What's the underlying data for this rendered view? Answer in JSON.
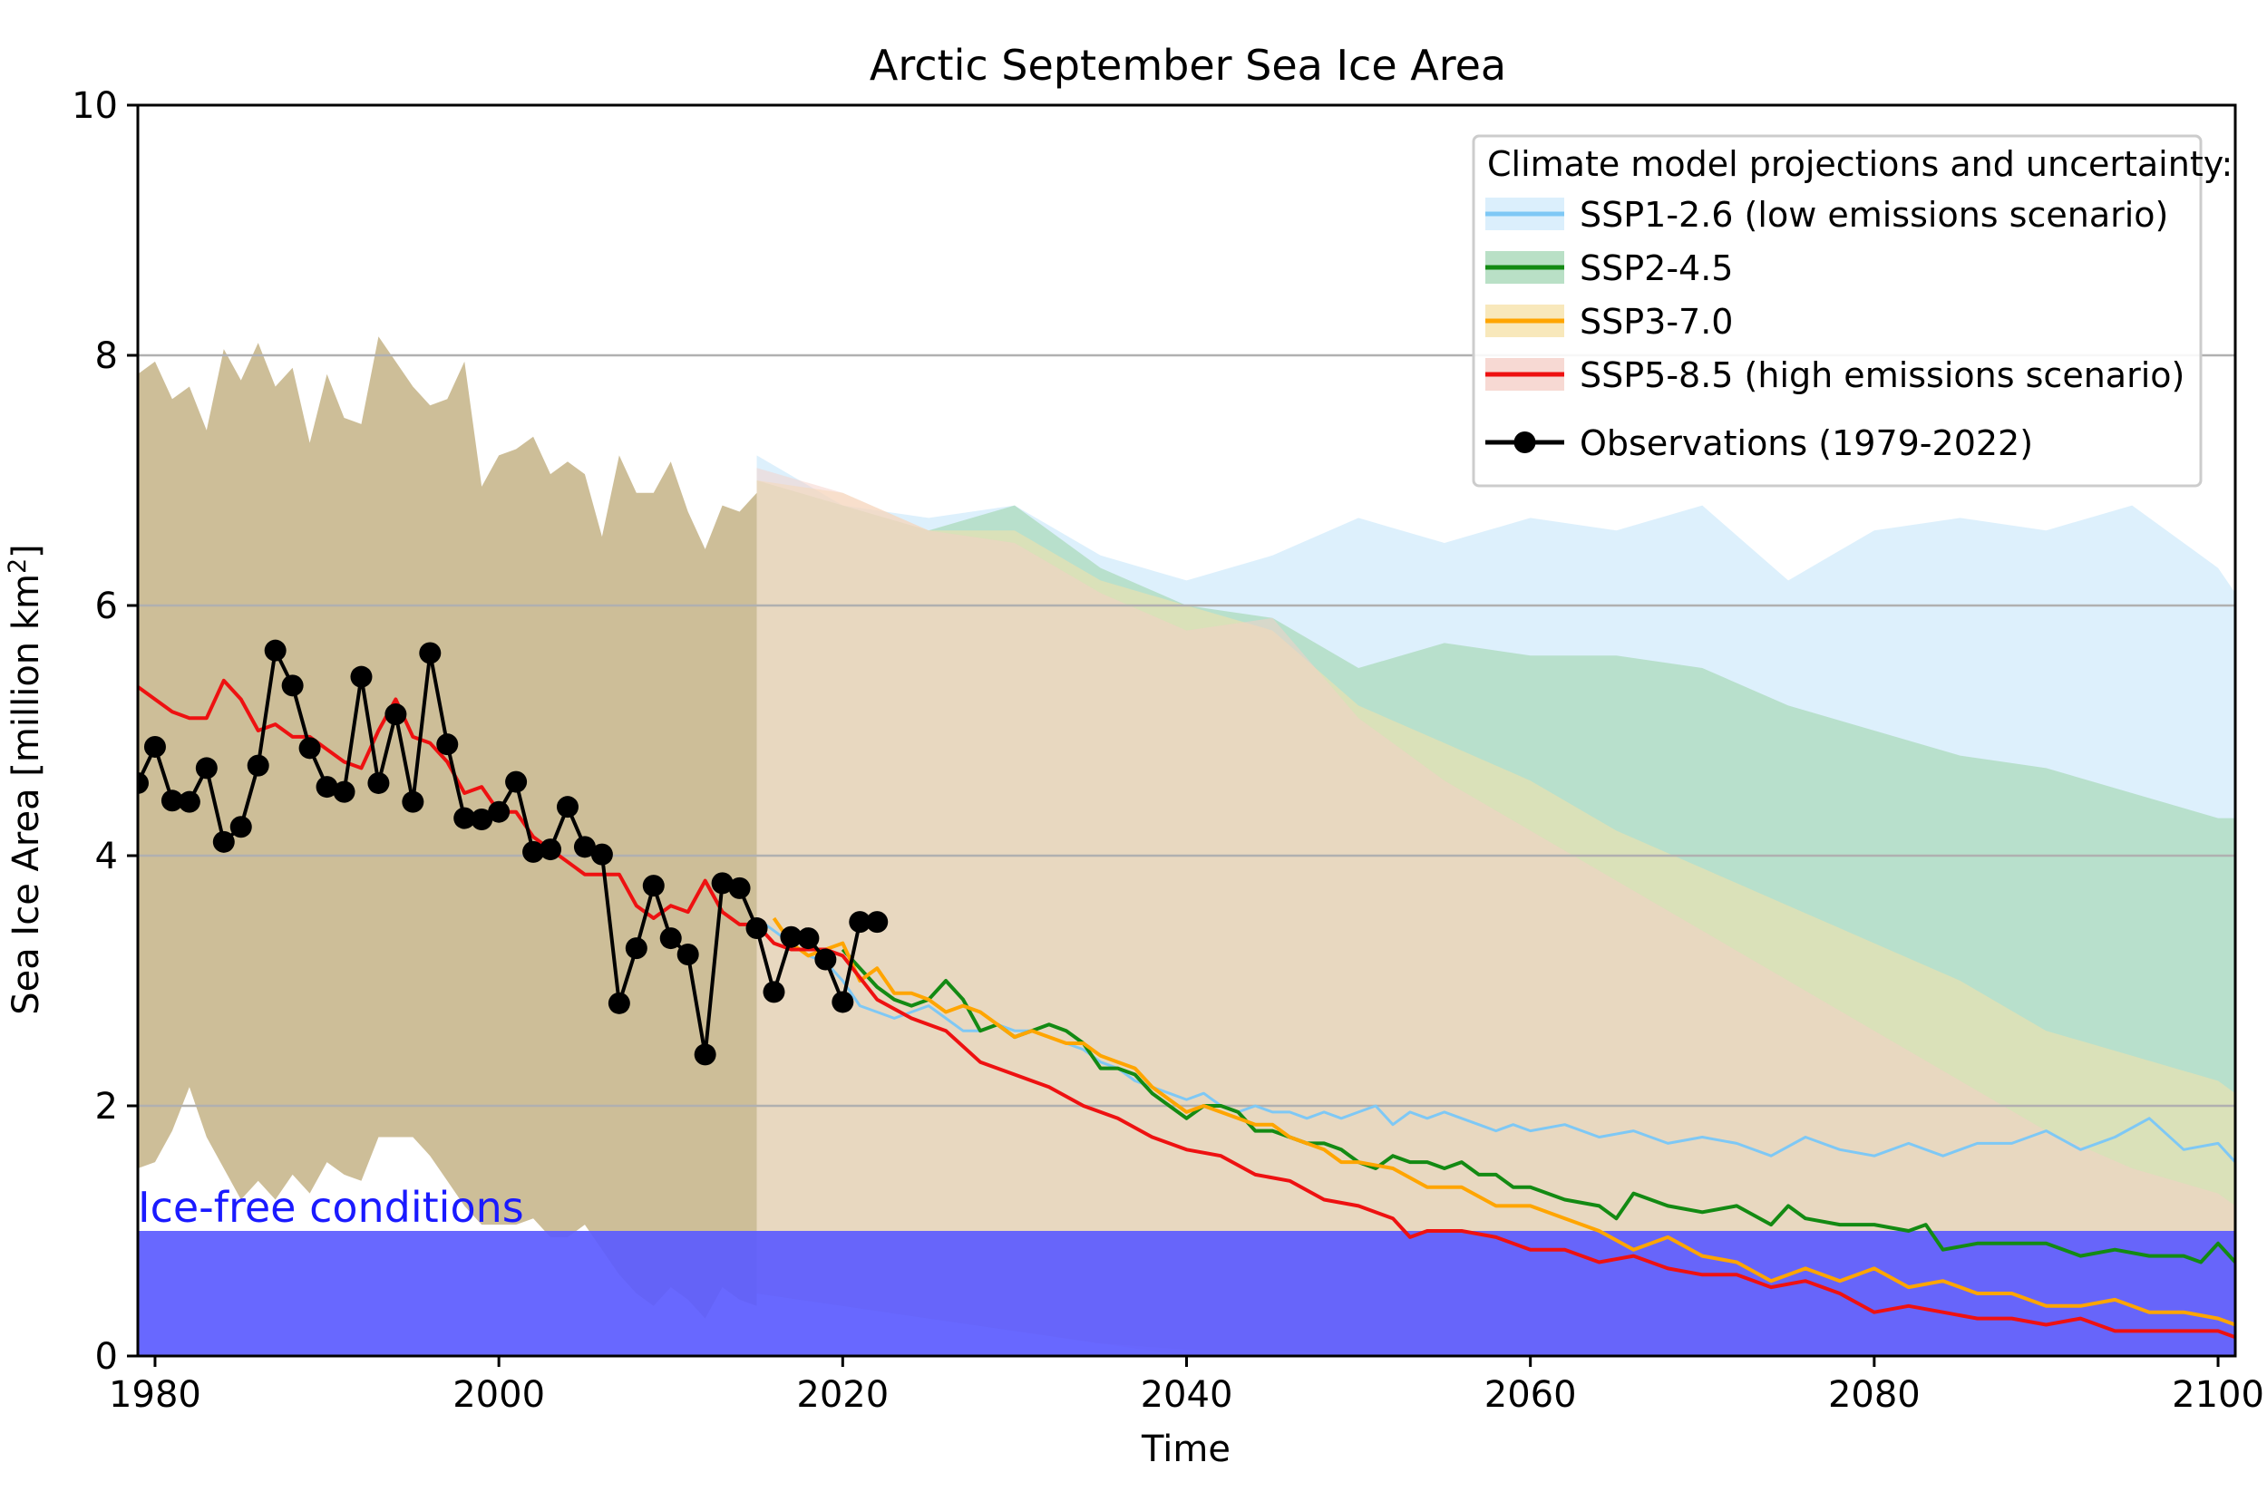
{
  "chart_data": {
    "type": "line",
    "title": "Arctic September Sea Ice Area",
    "xlabel": "Time",
    "ylabel_prefix": "Sea Ice Area [million km",
    "ylabel_sup": "2",
    "ylabel_suffix": "]",
    "xlim": [
      1979,
      2101
    ],
    "ylim": [
      0,
      10
    ],
    "xticks": [
      1980,
      2000,
      2020,
      2040,
      2060,
      2080,
      2100
    ],
    "yticks": [
      0,
      2,
      4,
      6,
      8,
      10
    ],
    "grid": "horizontal",
    "legend_placement": "top-right",
    "legend_title": "Climate model projections and uncertainty:",
    "annotation": {
      "text": "Ice-free conditions",
      "y_top": 1.0,
      "color": "#1a1aff"
    },
    "colors": {
      "ice_free": "#5b5bff",
      "band_historical": "#cdbe98",
      "ssp126": "#7ec8f5",
      "ssp126_band": "#d2ebfb",
      "ssp245": "#138a13",
      "ssp245_band": "#a8d8b8",
      "ssp370": "#ffa500",
      "ssp370_band": "#f6e2aa",
      "ssp585": "#ee1111",
      "ssp585_band": "#f5cfc8",
      "obs": "#000000"
    },
    "bands": [
      {
        "name": "historical",
        "color_key": "band_historical",
        "x": [
          1979,
          1980,
          1981,
          1982,
          1983,
          1984,
          1985,
          1986,
          1987,
          1988,
          1989,
          1990,
          1991,
          1992,
          1993,
          1994,
          1995,
          1996,
          1997,
          1998,
          1999,
          2000,
          2001,
          2002,
          2003,
          2004,
          2005,
          2006,
          2007,
          2008,
          2009,
          2010,
          2011,
          2012,
          2013,
          2014,
          2015
        ],
        "upper": [
          7.85,
          7.95,
          7.65,
          7.75,
          7.4,
          8.05,
          7.8,
          8.1,
          7.75,
          7.9,
          7.3,
          7.85,
          7.5,
          7.45,
          8.15,
          7.95,
          7.75,
          7.6,
          7.65,
          7.95,
          6.95,
          7.2,
          7.25,
          7.35,
          7.05,
          7.15,
          7.05,
          6.55,
          7.2,
          6.9,
          6.9,
          7.15,
          6.75,
          6.45,
          6.8,
          6.75,
          6.9
        ],
        "lower": [
          1.5,
          1.55,
          1.8,
          2.15,
          1.75,
          1.5,
          1.25,
          1.4,
          1.25,
          1.45,
          1.3,
          1.55,
          1.45,
          1.4,
          1.75,
          1.75,
          1.75,
          1.6,
          1.4,
          1.2,
          1.05,
          1.05,
          1.05,
          1.1,
          0.95,
          0.95,
          1.05,
          0.85,
          0.65,
          0.5,
          0.4,
          0.55,
          0.45,
          0.3,
          0.55,
          0.45,
          0.4
        ]
      },
      {
        "name": "SSP1-2.6 band",
        "color_key": "ssp126_band",
        "x": [
          2015,
          2020,
          2025,
          2030,
          2035,
          2040,
          2045,
          2050,
          2055,
          2060,
          2065,
          2070,
          2075,
          2080,
          2085,
          2090,
          2095,
          2100,
          2101
        ],
        "upper": [
          7.2,
          6.8,
          6.7,
          6.8,
          6.4,
          6.2,
          6.4,
          6.7,
          6.5,
          6.7,
          6.6,
          6.8,
          6.2,
          6.6,
          6.7,
          6.6,
          6.8,
          6.3,
          6.1
        ],
        "lower": [
          0.5,
          0.4,
          0.3,
          0.2,
          0.15,
          0.1,
          0.1,
          0.1,
          0.05,
          0.05,
          0.05,
          0.05,
          0.05,
          0.05,
          0.05,
          0.05,
          0.05,
          0.05,
          0.05
        ]
      },
      {
        "name": "SSP2-4.5 band",
        "color_key": "ssp245_band",
        "x": [
          2015,
          2020,
          2025,
          2030,
          2035,
          2040,
          2045,
          2050,
          2055,
          2060,
          2065,
          2070,
          2075,
          2080,
          2085,
          2090,
          2095,
          2100,
          2101
        ],
        "upper": [
          7.0,
          6.8,
          6.6,
          6.8,
          6.3,
          6.0,
          5.9,
          5.5,
          5.7,
          5.6,
          5.6,
          5.5,
          5.2,
          5.0,
          4.8,
          4.7,
          4.5,
          4.3,
          4.3
        ],
        "lower": [
          0.5,
          0.4,
          0.3,
          0.2,
          0.1,
          0.05,
          0.05,
          0.0,
          0.0,
          0.0,
          0.0,
          0.0,
          0.0,
          0.0,
          0.0,
          0.0,
          0.0,
          0.0,
          0.0
        ]
      },
      {
        "name": "SSP3-7.0 band",
        "color_key": "ssp370_band",
        "x": [
          2015,
          2020,
          2025,
          2030,
          2035,
          2040,
          2045,
          2050,
          2055,
          2060,
          2065,
          2070,
          2075,
          2080,
          2085,
          2090,
          2095,
          2100,
          2101
        ],
        "upper": [
          7.0,
          6.9,
          6.6,
          6.6,
          6.2,
          6.0,
          5.8,
          5.2,
          4.9,
          4.6,
          4.2,
          3.9,
          3.6,
          3.3,
          3.0,
          2.6,
          2.4,
          2.2,
          2.1
        ],
        "lower": [
          0.5,
          0.4,
          0.3,
          0.2,
          0.1,
          0.05,
          0.0,
          0.0,
          0.0,
          0.0,
          0.0,
          0.0,
          0.0,
          0.0,
          0.0,
          0.0,
          0.0,
          0.0,
          0.0
        ]
      },
      {
        "name": "SSP5-8.5 band",
        "color_key": "ssp585_band",
        "x": [
          2015,
          2020,
          2025,
          2030,
          2035,
          2040,
          2045,
          2050,
          2055,
          2060,
          2065,
          2070,
          2075,
          2080,
          2085,
          2090,
          2095,
          2100,
          2101
        ],
        "upper": [
          7.1,
          6.9,
          6.6,
          6.5,
          6.1,
          5.8,
          5.9,
          5.1,
          4.6,
          4.2,
          3.8,
          3.4,
          3.0,
          2.6,
          2.2,
          1.8,
          1.5,
          1.3,
          1.2
        ],
        "lower": [
          0.5,
          0.4,
          0.3,
          0.2,
          0.1,
          0.0,
          0.0,
          0.0,
          0.0,
          0.0,
          0.0,
          0.0,
          0.0,
          0.0,
          0.0,
          0.0,
          0.0,
          0.0,
          0.0
        ]
      }
    ],
    "series": [
      {
        "name": "SSP1-2.6 (low emissions scenario)",
        "color_key": "ssp126",
        "marker": false,
        "line_width": 3,
        "legend_swatch": "band",
        "x": [
          2015,
          2016,
          2017,
          2018,
          2019,
          2020,
          2021,
          2022,
          2023,
          2024,
          2025,
          2026,
          2027,
          2028,
          2029,
          2030,
          2031,
          2032,
          2033,
          2034,
          2035,
          2036,
          2037,
          2038,
          2039,
          2040,
          2041,
          2042,
          2043,
          2044,
          2045,
          2046,
          2047,
          2048,
          2049,
          2050,
          2051,
          2052,
          2053,
          2054,
          2055,
          2056,
          2057,
          2058,
          2059,
          2060,
          2062,
          2064,
          2066,
          2068,
          2070,
          2072,
          2074,
          2076,
          2078,
          2080,
          2082,
          2084,
          2086,
          2088,
          2090,
          2092,
          2094,
          2096,
          2098,
          2100,
          2101
        ],
        "values": [
          3.5,
          3.4,
          3.3,
          3.2,
          3.15,
          3.0,
          2.8,
          2.75,
          2.7,
          2.75,
          2.8,
          2.7,
          2.6,
          2.6,
          2.65,
          2.6,
          2.6,
          2.55,
          2.5,
          2.45,
          2.35,
          2.3,
          2.2,
          2.15,
          2.1,
          2.05,
          2.1,
          2.0,
          1.95,
          2.0,
          1.95,
          1.95,
          1.9,
          1.95,
          1.9,
          1.95,
          2.0,
          1.85,
          1.95,
          1.9,
          1.95,
          1.9,
          1.85,
          1.8,
          1.85,
          1.8,
          1.85,
          1.75,
          1.8,
          1.7,
          1.75,
          1.7,
          1.6,
          1.75,
          1.65,
          1.6,
          1.7,
          1.6,
          1.7,
          1.7,
          1.8,
          1.65,
          1.75,
          1.9,
          1.65,
          1.7,
          1.55
        ]
      },
      {
        "name": "SSP2-4.5",
        "color_key": "ssp245",
        "marker": false,
        "line_width": 4,
        "legend_swatch": "band",
        "x": [
          2020,
          2021,
          2022,
          2023,
          2024,
          2025,
          2026,
          2027,
          2028,
          2029,
          2030,
          2031,
          2032,
          2033,
          2034,
          2035,
          2036,
          2037,
          2038,
          2039,
          2040,
          2041,
          2042,
          2043,
          2044,
          2045,
          2046,
          2047,
          2048,
          2049,
          2050,
          2051,
          2052,
          2053,
          2054,
          2055,
          2056,
          2057,
          2058,
          2059,
          2060,
          2062,
          2064,
          2065,
          2066,
          2068,
          2070,
          2072,
          2074,
          2075,
          2076,
          2078,
          2080,
          2082,
          2083,
          2084,
          2086,
          2088,
          2090,
          2092,
          2094,
          2096,
          2098,
          2099,
          2100,
          2101
        ],
        "values": [
          3.25,
          3.1,
          2.95,
          2.85,
          2.8,
          2.85,
          3.0,
          2.85,
          2.6,
          2.65,
          2.55,
          2.6,
          2.65,
          2.6,
          2.5,
          2.3,
          2.3,
          2.25,
          2.1,
          2.0,
          1.9,
          2.0,
          2.0,
          1.95,
          1.8,
          1.8,
          1.75,
          1.7,
          1.7,
          1.65,
          1.55,
          1.5,
          1.6,
          1.55,
          1.55,
          1.5,
          1.55,
          1.45,
          1.45,
          1.35,
          1.35,
          1.25,
          1.2,
          1.1,
          1.3,
          1.2,
          1.15,
          1.2,
          1.05,
          1.2,
          1.1,
          1.05,
          1.05,
          1.0,
          1.05,
          0.85,
          0.9,
          0.9,
          0.9,
          0.8,
          0.85,
          0.8,
          0.8,
          0.75,
          0.9,
          0.75
        ]
      },
      {
        "name": "SSP3-7.0",
        "color_key": "ssp370",
        "marker": false,
        "line_width": 4,
        "legend_swatch": "band",
        "x": [
          2016,
          2017,
          2018,
          2019,
          2020,
          2021,
          2022,
          2023,
          2024,
          2025,
          2026,
          2027,
          2028,
          2029,
          2030,
          2031,
          2032,
          2033,
          2034,
          2035,
          2036,
          2037,
          2038,
          2039,
          2040,
          2041,
          2042,
          2043,
          2044,
          2045,
          2046,
          2047,
          2048,
          2049,
          2050,
          2052,
          2054,
          2056,
          2058,
          2060,
          2062,
          2064,
          2066,
          2068,
          2070,
          2072,
          2074,
          2076,
          2078,
          2080,
          2082,
          2084,
          2086,
          2088,
          2090,
          2092,
          2094,
          2096,
          2098,
          2100,
          2101
        ],
        "values": [
          3.5,
          3.3,
          3.2,
          3.25,
          3.3,
          3.0,
          3.1,
          2.9,
          2.9,
          2.85,
          2.75,
          2.8,
          2.75,
          2.65,
          2.55,
          2.6,
          2.55,
          2.5,
          2.5,
          2.4,
          2.35,
          2.3,
          2.15,
          2.05,
          1.95,
          2.0,
          1.95,
          1.9,
          1.85,
          1.85,
          1.75,
          1.7,
          1.65,
          1.55,
          1.55,
          1.5,
          1.35,
          1.35,
          1.2,
          1.2,
          1.1,
          1.0,
          0.85,
          0.95,
          0.8,
          0.75,
          0.6,
          0.7,
          0.6,
          0.7,
          0.55,
          0.6,
          0.5,
          0.5,
          0.4,
          0.4,
          0.45,
          0.35,
          0.35,
          0.3,
          0.25
        ]
      },
      {
        "name": "SSP5-8.5 (high emissions scenario)",
        "color_key": "ssp585",
        "marker": false,
        "line_width": 4,
        "legend_swatch": "band",
        "x": [
          1979,
          1980,
          1981,
          1982,
          1983,
          1984,
          1985,
          1986,
          1987,
          1988,
          1989,
          1990,
          1991,
          1992,
          1993,
          1994,
          1995,
          1996,
          1997,
          1998,
          1999,
          2000,
          2001,
          2002,
          2003,
          2004,
          2005,
          2006,
          2007,
          2008,
          2009,
          2010,
          2011,
          2012,
          2013,
          2014,
          2015,
          2016,
          2017,
          2018,
          2019,
          2020,
          2022,
          2024,
          2026,
          2028,
          2030,
          2032,
          2034,
          2036,
          2038,
          2040,
          2042,
          2044,
          2046,
          2048,
          2050,
          2052,
          2053,
          2054,
          2056,
          2058,
          2060,
          2062,
          2064,
          2066,
          2068,
          2070,
          2072,
          2074,
          2076,
          2078,
          2080,
          2082,
          2084,
          2086,
          2088,
          2090,
          2092,
          2094,
          2096,
          2098,
          2100,
          2101
        ],
        "values": [
          5.35,
          5.25,
          5.15,
          5.1,
          5.1,
          5.4,
          5.25,
          5.0,
          5.05,
          4.95,
          4.95,
          4.85,
          4.75,
          4.7,
          5.0,
          5.25,
          4.95,
          4.9,
          4.75,
          4.5,
          4.55,
          4.35,
          4.35,
          4.15,
          4.05,
          3.95,
          3.85,
          3.85,
          3.85,
          3.6,
          3.5,
          3.6,
          3.55,
          3.8,
          3.55,
          3.45,
          3.45,
          3.3,
          3.25,
          3.25,
          3.25,
          3.2,
          2.85,
          2.7,
          2.6,
          2.35,
          2.25,
          2.15,
          2.0,
          1.9,
          1.75,
          1.65,
          1.6,
          1.45,
          1.4,
          1.25,
          1.2,
          1.1,
          0.95,
          1.0,
          1.0,
          0.95,
          0.85,
          0.85,
          0.75,
          0.8,
          0.7,
          0.65,
          0.65,
          0.55,
          0.6,
          0.5,
          0.35,
          0.4,
          0.35,
          0.3,
          0.3,
          0.25,
          0.3,
          0.2,
          0.2,
          0.2,
          0.2,
          0.15
        ]
      },
      {
        "name": "Observations (1979-2022)",
        "color_key": "obs",
        "marker": true,
        "line_width": 4,
        "legend_swatch": "marker",
        "x": [
          1979,
          1980,
          1981,
          1982,
          1983,
          1984,
          1985,
          1986,
          1987,
          1988,
          1989,
          1990,
          1991,
          1992,
          1993,
          1994,
          1995,
          1996,
          1997,
          1998,
          1999,
          2000,
          2001,
          2002,
          2003,
          2004,
          2005,
          2006,
          2007,
          2008,
          2009,
          2010,
          2011,
          2012,
          2013,
          2014,
          2015,
          2016,
          2017,
          2018,
          2019,
          2020,
          2021,
          2022
        ],
        "values": [
          4.58,
          4.87,
          4.44,
          4.43,
          4.7,
          4.11,
          4.23,
          4.72,
          5.64,
          5.36,
          4.86,
          4.55,
          4.51,
          5.43,
          4.58,
          5.13,
          4.43,
          5.62,
          4.89,
          4.3,
          4.29,
          4.35,
          4.59,
          4.03,
          4.05,
          4.39,
          4.07,
          4.01,
          2.82,
          3.26,
          3.76,
          3.34,
          3.21,
          2.41,
          3.78,
          3.74,
          3.42,
          2.91,
          3.35,
          3.34,
          3.17,
          2.83,
          3.47,
          3.47
        ]
      }
    ]
  }
}
